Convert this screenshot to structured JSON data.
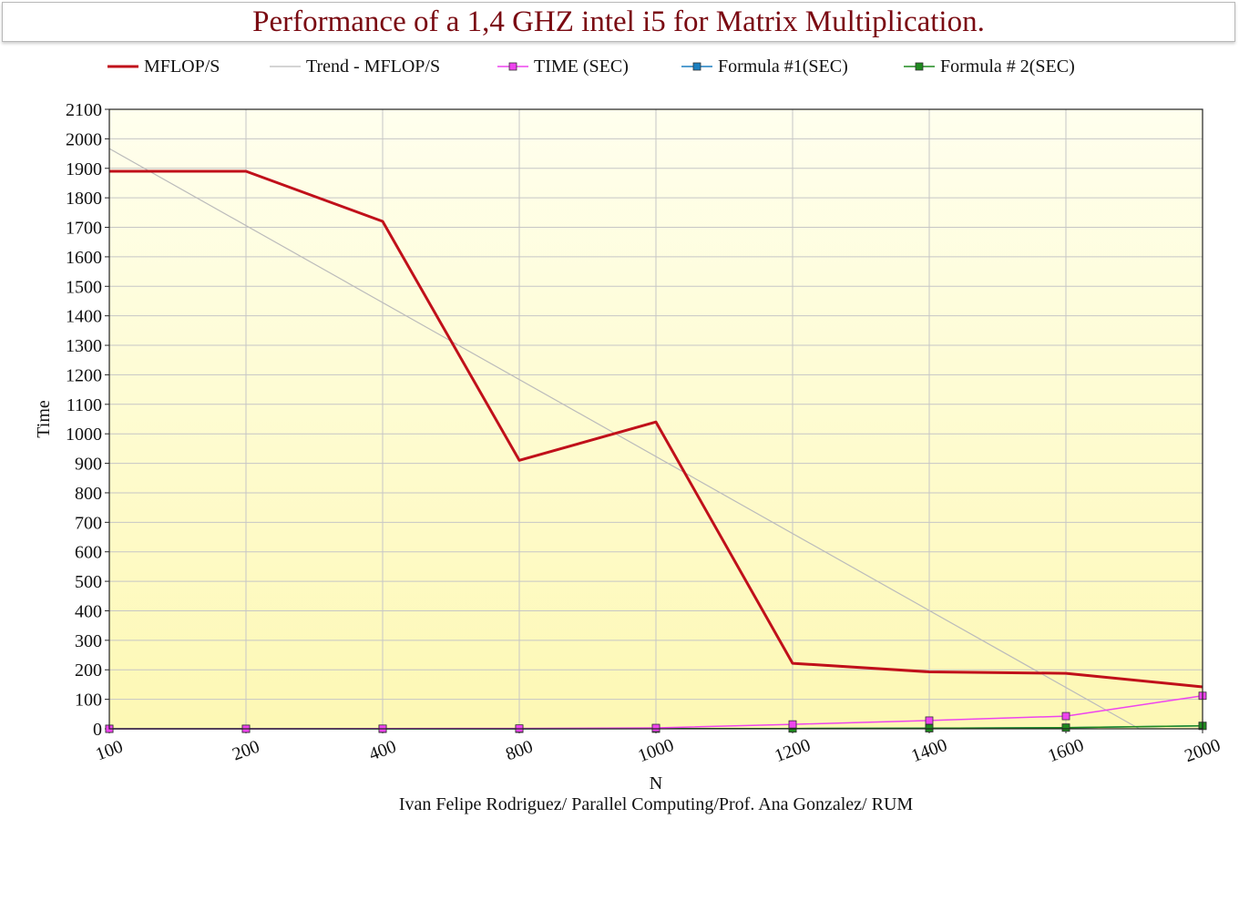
{
  "chart_data": {
    "type": "line",
    "title": "Performance of a 1,4 GHZ intel i5 for Matrix Multiplication.",
    "xlabel": "N",
    "ylabel": "Time",
    "footer": "Ivan Felipe Rodriguez/ Parallel Computing/Prof. Ana Gonzalez/ RUM",
    "categories": [
      "100",
      "200",
      "400",
      "800",
      "1000",
      "1200",
      "1400",
      "1600",
      "2000"
    ],
    "ylim": [
      0,
      2100
    ],
    "yticks": [
      "0",
      "100",
      "200",
      "300",
      "400",
      "500",
      "600",
      "700",
      "800",
      "900",
      "1000",
      "1100",
      "1200",
      "1300",
      "1400",
      "1500",
      "1600",
      "1700",
      "1800",
      "1900",
      "2000",
      "2100"
    ],
    "grid": true,
    "legend_position": "top",
    "plot_background": [
      "#ffffee",
      "#fdf8b4"
    ],
    "series": [
      {
        "name": "MFLOP/S",
        "color": "#c0101a",
        "width": 3,
        "marker": "none",
        "values": [
          1890,
          1890,
          1720,
          910,
          1040,
          222,
          193,
          188,
          142
        ]
      },
      {
        "name": "Trend - MFLOP/S",
        "color": "#bbbbbb",
        "width": 1.2,
        "marker": "none",
        "trend": true,
        "values": [
          1967,
          1706,
          1445,
          1184,
          923,
          662,
          401,
          140,
          0
        ]
      },
      {
        "name": "TIME (SEC)",
        "color": "#ee44ee",
        "width": 1.5,
        "marker": "square",
        "values": [
          0.01,
          0.07,
          0.6,
          1.2,
          3,
          15,
          28,
          43,
          112
        ]
      },
      {
        "name": "Formula #1(SEC)",
        "color": "#1a7fc0",
        "width": 1.5,
        "marker": "square",
        "values": [
          0,
          0,
          0,
          0,
          0.5,
          1,
          2,
          4,
          10
        ]
      },
      {
        "name": "Formula # 2(SEC)",
        "color": "#1f8a1f",
        "width": 1.5,
        "marker": "square",
        "values": [
          0,
          0,
          0,
          0,
          0.5,
          1,
          2,
          4,
          10
        ]
      }
    ]
  }
}
